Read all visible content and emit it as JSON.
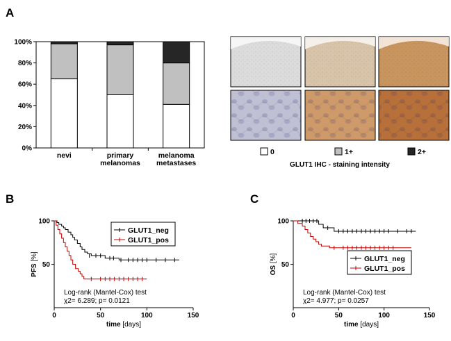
{
  "panels": {
    "a": "A",
    "b": "B",
    "c": "C"
  },
  "colors": {
    "intensity_0": "#ffffff",
    "intensity_1": "#c0c0c0",
    "intensity_2": "#262626",
    "glut1_neg": "#000000",
    "glut1_pos": "#c00000"
  },
  "ihc": {
    "caption": "GLUT1 IHC - staining intensity",
    "legend": [
      {
        "label": "0",
        "color": "#ffffff"
      },
      {
        "label": "1+",
        "color": "#c0c0c0"
      },
      {
        "label": "2+",
        "color": "#262626"
      }
    ],
    "tiles": [
      {
        "magnification": "low",
        "intensity": "0",
        "tone": "#dcdcdc"
      },
      {
        "magnification": "low",
        "intensity": "1+",
        "tone": "#d8c4a8"
      },
      {
        "magnification": "low",
        "intensity": "2+",
        "tone": "#c9955f"
      },
      {
        "magnification": "high",
        "intensity": "0",
        "tone": "#bfc0d4"
      },
      {
        "magnification": "high",
        "intensity": "1+",
        "tone": "#cf9a6a"
      },
      {
        "magnification": "high",
        "intensity": "2+",
        "tone": "#b8703a"
      }
    ]
  },
  "chart_data": [
    {
      "type": "bar",
      "stacked": true,
      "categories": [
        [
          "nevi"
        ],
        [
          "primary",
          "melanomas"
        ],
        [
          "melanoma",
          "metastases"
        ]
      ],
      "series": [
        {
          "name": "0",
          "values": [
            65,
            50,
            41
          ]
        },
        {
          "name": "1+",
          "values": [
            33,
            47,
            39
          ]
        },
        {
          "name": "2+",
          "values": [
            2,
            3,
            20
          ]
        }
      ],
      "ylim": [
        0,
        100
      ],
      "yticks": [
        "0%",
        "20%",
        "40%",
        "60%",
        "80%",
        "100%"
      ],
      "xlabel": "",
      "ylabel": ""
    },
    {
      "type": "line",
      "subtype": "kaplan-meier",
      "xlabel": "time",
      "xlabel_unit": "[days]",
      "ylabel": "PFS",
      "ylabel_unit": "[%]",
      "xlim": [
        0,
        150
      ],
      "ylim": [
        0,
        100
      ],
      "xticks": [
        0,
        50,
        100,
        150
      ],
      "yticks": [
        50,
        100
      ],
      "legend_position": "top-right",
      "annotation": [
        "Log-rank (Mantel-Cox) test",
        "χ2= 6.289; p= 0.0121"
      ],
      "series": [
        {
          "name": "GLUT1_neg",
          "color": "#000000",
          "steps": [
            [
              0,
              100
            ],
            [
              3,
              98
            ],
            [
              5,
              96
            ],
            [
              8,
              94
            ],
            [
              10,
              92
            ],
            [
              12,
              90
            ],
            [
              15,
              87
            ],
            [
              18,
              84
            ],
            [
              20,
              81
            ],
            [
              22,
              78
            ],
            [
              25,
              74
            ],
            [
              28,
              70
            ],
            [
              30,
              67
            ],
            [
              33,
              64
            ],
            [
              36,
              62
            ],
            [
              40,
              60
            ],
            [
              55,
              57
            ],
            [
              70,
              55
            ],
            [
              135,
              55
            ]
          ],
          "censored": [
            [
              38,
              60
            ],
            [
              45,
              60
            ],
            [
              50,
              60
            ],
            [
              60,
              57
            ],
            [
              64,
              57
            ],
            [
              72,
              55
            ],
            [
              80,
              55
            ],
            [
              85,
              55
            ],
            [
              90,
              55
            ],
            [
              95,
              55
            ],
            [
              100,
              55
            ],
            [
              110,
              55
            ],
            [
              120,
              55
            ],
            [
              130,
              55
            ]
          ]
        },
        {
          "name": "GLUT1_pos",
          "color": "#c00000",
          "steps": [
            [
              0,
              100
            ],
            [
              2,
              95
            ],
            [
              4,
              90
            ],
            [
              6,
              85
            ],
            [
              8,
              80
            ],
            [
              10,
              75
            ],
            [
              12,
              70
            ],
            [
              14,
              65
            ],
            [
              16,
              60
            ],
            [
              18,
              55
            ],
            [
              20,
              50
            ],
            [
              23,
              45
            ],
            [
              26,
              42
            ],
            [
              28,
              39
            ],
            [
              30,
              36
            ],
            [
              32,
              33
            ],
            [
              100,
              33
            ]
          ],
          "censored": [
            [
              40,
              33
            ],
            [
              50,
              33
            ],
            [
              55,
              33
            ],
            [
              60,
              33
            ],
            [
              65,
              33
            ],
            [
              70,
              33
            ],
            [
              75,
              33
            ],
            [
              80,
              33
            ],
            [
              85,
              33
            ],
            [
              90,
              33
            ],
            [
              95,
              33
            ]
          ]
        }
      ]
    },
    {
      "type": "line",
      "subtype": "kaplan-meier",
      "xlabel": "time",
      "xlabel_unit": "[days]",
      "ylabel": "OS",
      "ylabel_unit": "[%]",
      "xlim": [
        0,
        150
      ],
      "ylim": [
        0,
        100
      ],
      "xticks": [
        0,
        50,
        100,
        150
      ],
      "yticks": [
        50,
        100
      ],
      "legend_position": "bottom-right",
      "annotation": [
        "Log-rank (Mantel-Cox) test",
        "χ2= 4.977; p= 0.0257"
      ],
      "series": [
        {
          "name": "GLUT1_neg",
          "color": "#000000",
          "steps": [
            [
              0,
              100
            ],
            [
              28,
              96
            ],
            [
              33,
              92
            ],
            [
              45,
              88
            ],
            [
              135,
              88
            ]
          ],
          "censored": [
            [
              10,
              100
            ],
            [
              14,
              100
            ],
            [
              18,
              100
            ],
            [
              22,
              100
            ],
            [
              26,
              100
            ],
            [
              38,
              92
            ],
            [
              50,
              88
            ],
            [
              55,
              88
            ],
            [
              60,
              88
            ],
            [
              65,
              88
            ],
            [
              70,
              88
            ],
            [
              75,
              88
            ],
            [
              80,
              88
            ],
            [
              85,
              88
            ],
            [
              90,
              88
            ],
            [
              95,
              88
            ],
            [
              100,
              88
            ],
            [
              105,
              88
            ],
            [
              115,
              88
            ],
            [
              125,
              88
            ],
            [
              130,
              88
            ]
          ]
        },
        {
          "name": "GLUT1_pos",
          "color": "#c00000",
          "steps": [
            [
              0,
              100
            ],
            [
              5,
              97
            ],
            [
              10,
              94
            ],
            [
              13,
              90
            ],
            [
              16,
              86
            ],
            [
              19,
              82
            ],
            [
              22,
              79
            ],
            [
              25,
              76
            ],
            [
              28,
              73
            ],
            [
              31,
              71
            ],
            [
              40,
              69
            ],
            [
              50,
              69
            ],
            [
              130,
              69
            ]
          ],
          "censored": [
            [
              45,
              69
            ],
            [
              55,
              69
            ],
            [
              60,
              69
            ],
            [
              65,
              69
            ],
            [
              70,
              69
            ],
            [
              75,
              69
            ],
            [
              80,
              69
            ],
            [
              85,
              69
            ],
            [
              90,
              69
            ],
            [
              95,
              69
            ],
            [
              100,
              69
            ],
            [
              105,
              69
            ],
            [
              110,
              69
            ]
          ]
        }
      ]
    }
  ]
}
